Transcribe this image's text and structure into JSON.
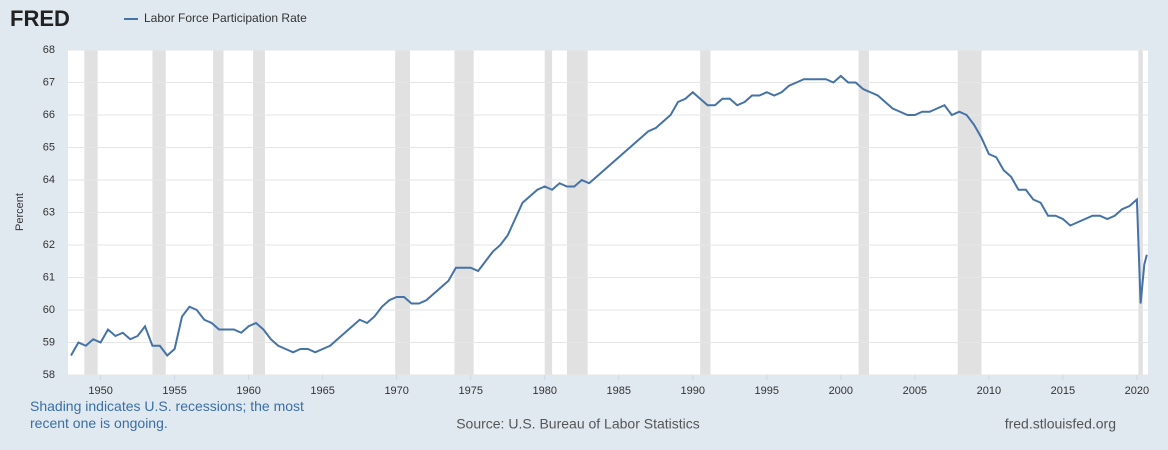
{
  "chart_data": {
    "type": "line",
    "brand": "FRED",
    "ylabel": "Percent",
    "note": "Shading indicates U.S. recessions; the most recent one is ongoing.",
    "source": "Source: U.S. Bureau of Labor Statistics",
    "site": "fred.stlouisfed.org",
    "xlim": [
      1948,
      2020.75
    ],
    "ylim": [
      58,
      68
    ],
    "xticks": [
      1950,
      1955,
      1960,
      1965,
      1970,
      1975,
      1980,
      1985,
      1990,
      1995,
      2000,
      2005,
      2010,
      2015,
      2020
    ],
    "yticks": [
      58,
      59,
      60,
      61,
      62,
      63,
      64,
      65,
      66,
      67,
      68
    ],
    "grid": true,
    "recessions": [
      [
        1948.9,
        1949.8
      ],
      [
        1953.5,
        1954.4
      ],
      [
        1957.6,
        1958.3
      ],
      [
        1960.3,
        1961.1
      ],
      [
        1969.9,
        1970.9
      ],
      [
        1973.9,
        1975.2
      ],
      [
        1980.0,
        1980.5
      ],
      [
        1981.5,
        1982.9
      ],
      [
        1990.5,
        1991.2
      ],
      [
        2001.2,
        2001.9
      ],
      [
        2007.9,
        2009.5
      ],
      [
        2020.1,
        2020.4
      ]
    ],
    "x": [
      1948,
      1948.5,
      1949,
      1949.5,
      1950,
      1950.5,
      1951,
      1951.5,
      1952,
      1952.5,
      1953,
      1953.5,
      1954,
      1954.5,
      1955,
      1955.5,
      1956,
      1956.5,
      1957,
      1957.5,
      1958,
      1958.5,
      1959,
      1959.5,
      1960,
      1960.5,
      1961,
      1961.5,
      1962,
      1962.5,
      1963,
      1963.5,
      1964,
      1964.5,
      1965,
      1965.5,
      1966,
      1966.5,
      1967,
      1967.5,
      1968,
      1968.5,
      1969,
      1969.5,
      1970,
      1970.5,
      1971,
      1971.5,
      1972,
      1972.5,
      1973,
      1973.5,
      1974,
      1974.5,
      1975,
      1975.5,
      1976,
      1976.5,
      1977,
      1977.5,
      1978,
      1978.5,
      1979,
      1979.5,
      1980,
      1980.5,
      1981,
      1981.5,
      1982,
      1982.5,
      1983,
      1983.5,
      1984,
      1984.5,
      1985,
      1985.5,
      1986,
      1986.5,
      1987,
      1987.5,
      1988,
      1988.5,
      1989,
      1989.5,
      1990,
      1990.5,
      1991,
      1991.5,
      1992,
      1992.5,
      1993,
      1993.5,
      1994,
      1994.5,
      1995,
      1995.5,
      1996,
      1996.5,
      1997,
      1997.5,
      1998,
      1998.5,
      1999,
      1999.5,
      2000,
      2000.5,
      2001,
      2001.5,
      2002,
      2002.5,
      2003,
      2003.5,
      2004,
      2004.5,
      2005,
      2005.5,
      2006,
      2006.5,
      2007,
      2007.5,
      2008,
      2008.5,
      2009,
      2009.5,
      2010,
      2010.5,
      2011,
      2011.5,
      2012,
      2012.5,
      2013,
      2013.5,
      2014,
      2014.5,
      2015,
      2015.5,
      2016,
      2016.5,
      2017,
      2017.5,
      2018,
      2018.5,
      2019,
      2019.5,
      2020,
      2020.25,
      2020.5,
      2020.67
    ],
    "series": [
      {
        "name": "Labor Force Participation Rate",
        "color": "#4572a7",
        "values": [
          58.6,
          59.0,
          58.9,
          59.1,
          59.0,
          59.4,
          59.2,
          59.3,
          59.1,
          59.2,
          59.5,
          58.9,
          58.9,
          58.6,
          58.8,
          59.8,
          60.1,
          60.0,
          59.7,
          59.6,
          59.4,
          59.4,
          59.4,
          59.3,
          59.5,
          59.6,
          59.4,
          59.1,
          58.9,
          58.8,
          58.7,
          58.8,
          58.8,
          58.7,
          58.8,
          58.9,
          59.1,
          59.3,
          59.5,
          59.7,
          59.6,
          59.8,
          60.1,
          60.3,
          60.4,
          60.4,
          60.2,
          60.2,
          60.3,
          60.5,
          60.7,
          60.9,
          61.3,
          61.3,
          61.3,
          61.2,
          61.5,
          61.8,
          62.0,
          62.3,
          62.8,
          63.3,
          63.5,
          63.7,
          63.8,
          63.7,
          63.9,
          63.8,
          63.8,
          64.0,
          63.9,
          64.1,
          64.3,
          64.5,
          64.7,
          64.9,
          65.1,
          65.3,
          65.5,
          65.6,
          65.8,
          66.0,
          66.4,
          66.5,
          66.7,
          66.5,
          66.3,
          66.3,
          66.5,
          66.5,
          66.3,
          66.4,
          66.6,
          66.6,
          66.7,
          66.6,
          66.7,
          66.9,
          67.0,
          67.1,
          67.1,
          67.1,
          67.1,
          67.0,
          67.2,
          67.0,
          67.0,
          66.8,
          66.7,
          66.6,
          66.4,
          66.2,
          66.1,
          66.0,
          66.0,
          66.1,
          66.1,
          66.2,
          66.3,
          66.0,
          66.1,
          66.0,
          65.7,
          65.3,
          64.8,
          64.7,
          64.3,
          64.1,
          63.7,
          63.7,
          63.4,
          63.3,
          62.9,
          62.9,
          62.8,
          62.6,
          62.7,
          62.8,
          62.9,
          62.9,
          62.8,
          62.9,
          63.1,
          63.2,
          63.4,
          60.2,
          61.4,
          61.7
        ]
      }
    ]
  }
}
